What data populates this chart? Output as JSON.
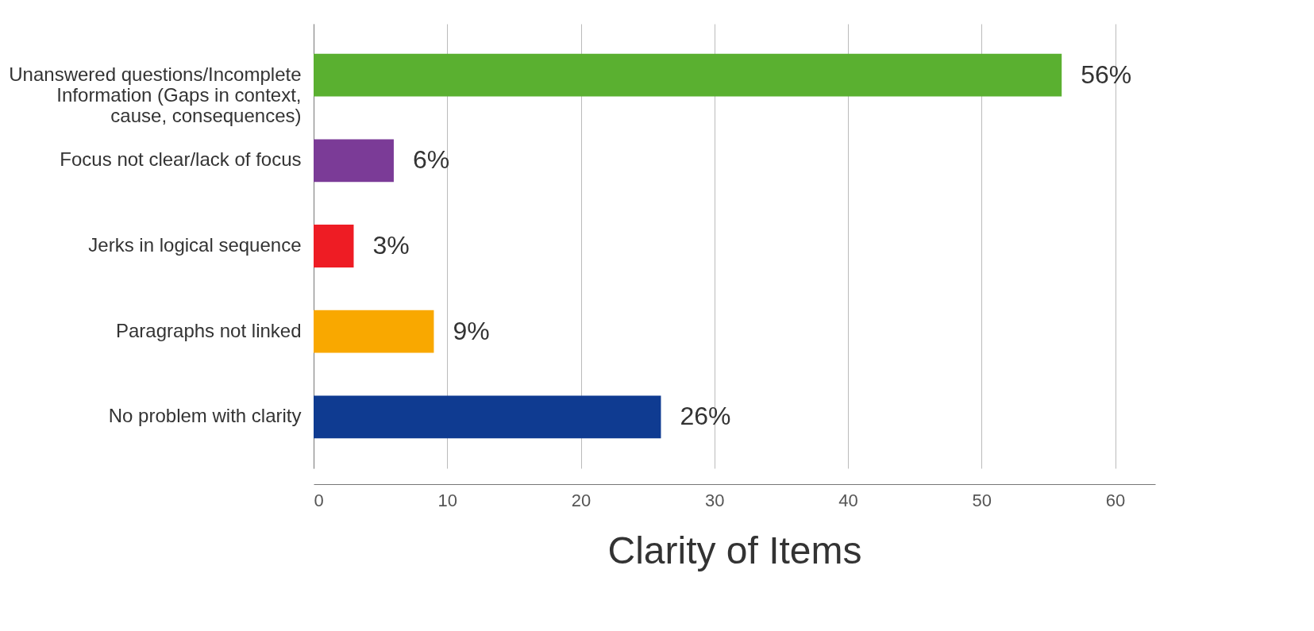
{
  "chart_data": {
    "type": "bar",
    "orientation": "horizontal",
    "xlabel": "Clarity of Items",
    "categories": [
      "Unanswered questions/Incomplete Information (Gaps in context, cause, consequences)",
      "Focus not clear/lack of focus",
      "Jerks in logical sequence",
      "Paragraphs not linked",
      "No problem with clarity"
    ],
    "values": [
      56,
      6,
      3,
      9,
      26
    ],
    "value_labels": [
      "56%",
      "6%",
      "3%",
      "9%",
      "26%"
    ],
    "colors": [
      "#5ab030",
      "#7b3b97",
      "#ee1c24",
      "#f9a800",
      "#0f3b91"
    ],
    "xlim": [
      0,
      63
    ],
    "xticks": [
      0,
      10,
      20,
      30,
      40,
      50,
      60
    ],
    "grid": "x"
  }
}
